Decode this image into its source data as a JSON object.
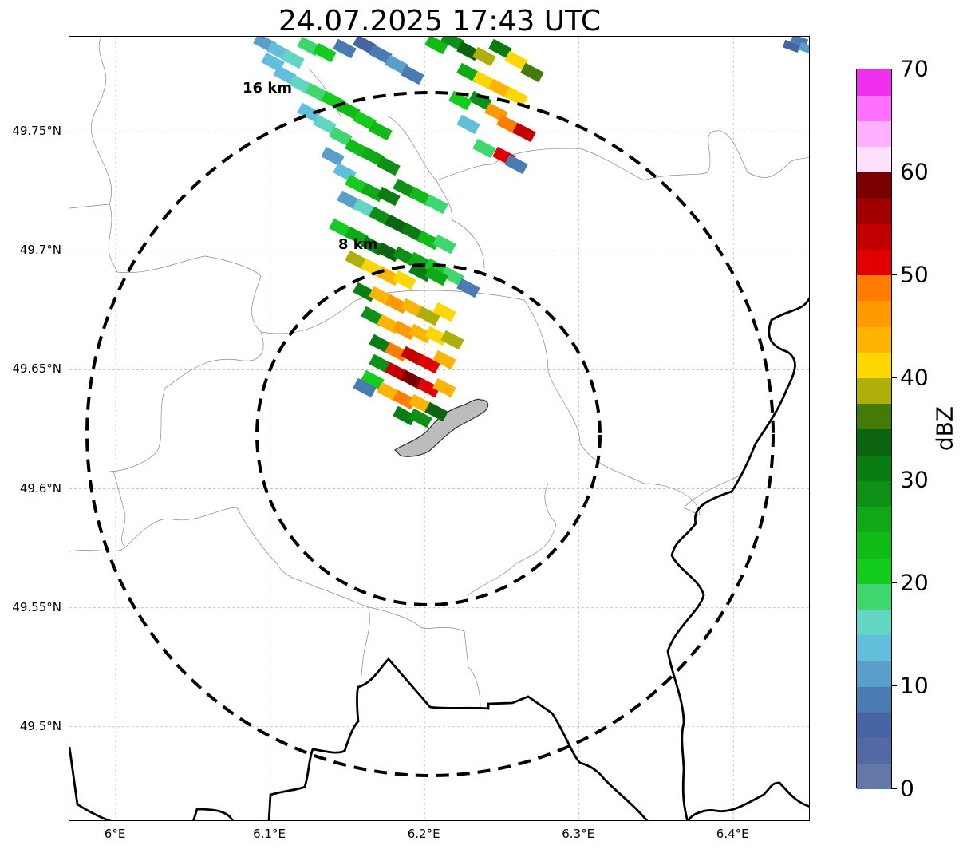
{
  "title": "24.07.2025 17:43 UTC",
  "map": {
    "lon_range": [
      5.97,
      6.45
    ],
    "lat_range": [
      49.46,
      49.79
    ],
    "lat_ticks": [
      {
        "value": 49.75,
        "label": "49.75°N"
      },
      {
        "value": 49.7,
        "label": "49.7°N"
      },
      {
        "value": 49.65,
        "label": "49.65°N"
      },
      {
        "value": 49.6,
        "label": "49.6°N"
      },
      {
        "value": 49.55,
        "label": "49.55°N"
      },
      {
        "value": 49.5,
        "label": "49.5°N"
      }
    ],
    "lon_ticks": [
      {
        "value": 6.0,
        "label": "6°E"
      },
      {
        "value": 6.1,
        "label": "6.1°E"
      },
      {
        "value": 6.2,
        "label": "6.2°E"
      },
      {
        "value": 6.3,
        "label": "6.3°E"
      },
      {
        "value": 6.4,
        "label": "6.4°E"
      }
    ],
    "grid": true,
    "range_rings": [
      {
        "radius_km": 8,
        "label": "8 km"
      },
      {
        "radius_km": 16,
        "label": "16 km"
      }
    ]
  },
  "colorbar": {
    "label": "dBZ",
    "min": 0,
    "max": 70,
    "ticks": [
      "0",
      "10",
      "20",
      "30",
      "40",
      "50",
      "60",
      "70"
    ],
    "colors": [
      "#6478a8",
      "#5469a3",
      "#4764a5",
      "#4a7bb3",
      "#5a9fc9",
      "#62bfdc",
      "#63d6c3",
      "#3dd66f",
      "#14cc1e",
      "#10bb18",
      "#0fa918",
      "#0e9016",
      "#0a7d12",
      "#0b6410",
      "#447b08",
      "#aeb009",
      "#fed700",
      "#feb400",
      "#fe9a00",
      "#fe7c00",
      "#e00000",
      "#c20000",
      "#a00000",
      "#7a0000",
      "#ffe0ff",
      "#ffb0ff",
      "#ff70ff",
      "#ee2fee"
    ]
  }
}
